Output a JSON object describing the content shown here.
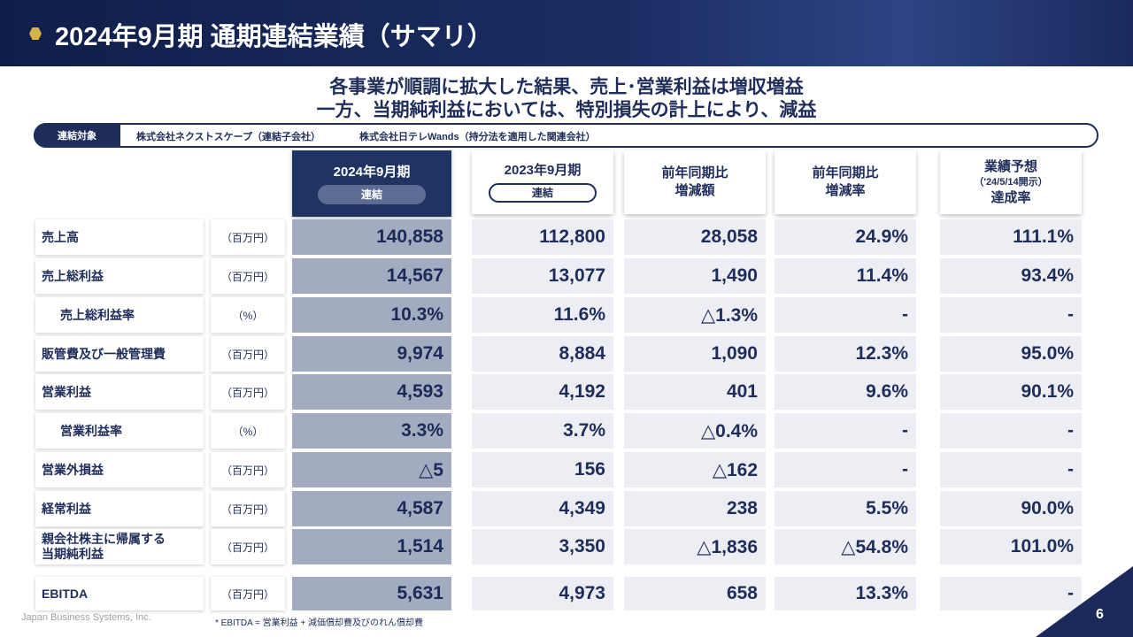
{
  "header": {
    "title": "2024年9月期 通期連結業績（サマリ）"
  },
  "headline": {
    "lines": [
      "各事業が順調に拡大した結果、売上･営業利益は増収増益",
      "一方、当期純利益においては、特別損失の計上により、減益"
    ]
  },
  "scope": {
    "label": "連結対象",
    "items": [
      "株式会社ネクストスケープ（連結子会社）",
      "株式会社日テレWands（持分法を適用した関連会社）"
    ]
  },
  "table": {
    "columns": [
      {
        "lines": [
          "2024年9月期"
        ],
        "tag": "連結"
      },
      {
        "lines": [
          "2023年9月期"
        ],
        "tag": "連結"
      },
      {
        "lines": [
          "前年同期比",
          "増減額"
        ]
      },
      {
        "lines": [
          "前年同期比",
          "増減率"
        ]
      },
      {
        "lines": [
          "業績予想",
          "（'24/5/14開示）",
          "達成率"
        ]
      }
    ],
    "rows": [
      {
        "label": [
          "売上高"
        ],
        "unit": "（百万円）",
        "cells": [
          "140,858",
          "112,800",
          "28,058",
          "24.9%",
          "111.1%"
        ]
      },
      {
        "label": [
          "売上総利益"
        ],
        "unit": "（百万円）",
        "cells": [
          "14,567",
          "13,077",
          "1,490",
          "11.4%",
          "93.4%"
        ]
      },
      {
        "label": [
          "売上総利益率"
        ],
        "unit": "（%）",
        "cells": [
          "10.3%",
          "11.6%",
          "△1.3%",
          "-",
          "-"
        ]
      },
      {
        "label": [
          "販管費及び一般管理費"
        ],
        "unit": "（百万円）",
        "cells": [
          "9,974",
          "8,884",
          "1,090",
          "12.3%",
          "95.0%"
        ]
      },
      {
        "label": [
          "営業利益"
        ],
        "unit": "（百万円）",
        "cells": [
          "4,593",
          "4,192",
          "401",
          "9.6%",
          "90.1%"
        ]
      },
      {
        "label": [
          "営業利益率"
        ],
        "unit": "（%）",
        "cells": [
          "3.3%",
          "3.7%",
          "△0.4%",
          "-",
          "-"
        ]
      },
      {
        "label": [
          "営業外損益"
        ],
        "unit": "（百万円）",
        "cells": [
          "△5",
          "156",
          "△162",
          "-",
          "-"
        ]
      },
      {
        "label": [
          "経常利益"
        ],
        "unit": "（百万円）",
        "cells": [
          "4,587",
          "4,349",
          "238",
          "5.5%",
          "90.0%"
        ]
      },
      {
        "label": [
          "親会社株主に帰属する",
          "当期純利益"
        ],
        "unit": "（百万円）",
        "cells": [
          "1,514",
          "3,350",
          "△1,836",
          "△54.8%",
          "101.0%"
        ]
      },
      {
        "label": [
          "EBITDA"
        ],
        "unit": "（百万円）",
        "cells": [
          "5,631",
          "4,973",
          "658",
          "13.3%",
          "-"
        ]
      }
    ]
  },
  "footer": {
    "company": "Japan Business Systems, Inc.",
    "note": "* EBITDA = 営業利益 + 減価償却費及びのれん償却費",
    "page": "6"
  }
}
